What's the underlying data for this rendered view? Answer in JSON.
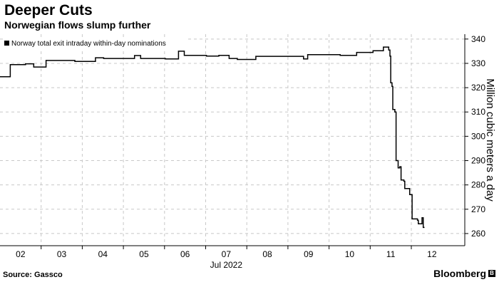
{
  "header": {
    "title": "Deeper Cuts",
    "subtitle": "Norwegian flows slump further"
  },
  "footer": {
    "source": "Source: Gassco",
    "brand": "Bloomberg"
  },
  "colors": {
    "line": "#000000",
    "grid": "#c8c8c8",
    "axis": "#000000",
    "background": "#ffffff"
  },
  "chart_data": {
    "type": "line",
    "title": "",
    "xlabel": "Jul 2022",
    "ylabel": "Million cubic meters a day",
    "ylim": [
      255,
      342
    ],
    "xlim": [
      1.5,
      12.8
    ],
    "x_ticks": [
      {
        "v": 2,
        "label": "02"
      },
      {
        "v": 3,
        "label": "03"
      },
      {
        "v": 4,
        "label": "04"
      },
      {
        "v": 5,
        "label": "05"
      },
      {
        "v": 6,
        "label": "06"
      },
      {
        "v": 7,
        "label": "07"
      },
      {
        "v": 8,
        "label": "08"
      },
      {
        "v": 9,
        "label": "09"
      },
      {
        "v": 10,
        "label": "10"
      },
      {
        "v": 11,
        "label": "11"
      },
      {
        "v": 12,
        "label": "12"
      }
    ],
    "x_month_label": {
      "v": 7,
      "label": "Jul 2022"
    },
    "y_ticks": [
      260,
      270,
      280,
      290,
      300,
      310,
      320,
      330,
      340
    ],
    "grid": true,
    "legend": {
      "position": "top-left",
      "label": "Norway total exit intraday within-day nominations"
    },
    "series": [
      {
        "name": "Norway total exit intraday within-day nominations",
        "step": true,
        "points": [
          [
            1.5,
            324.5
          ],
          [
            1.73,
            324.5
          ],
          [
            1.75,
            329.5
          ],
          [
            2.1,
            329.5
          ],
          [
            2.12,
            329.8
          ],
          [
            2.3,
            329.8
          ],
          [
            2.32,
            328.5
          ],
          [
            2.6,
            328.5
          ],
          [
            2.62,
            331.2
          ],
          [
            3.3,
            331.2
          ],
          [
            3.32,
            330.8
          ],
          [
            3.8,
            330.8
          ],
          [
            3.82,
            332.3
          ],
          [
            4.0,
            332.3
          ],
          [
            4.02,
            332.0
          ],
          [
            4.75,
            332.0
          ],
          [
            4.77,
            333.2
          ],
          [
            4.9,
            333.2
          ],
          [
            4.92,
            332.0
          ],
          [
            5.5,
            332.0
          ],
          [
            5.52,
            331.8
          ],
          [
            5.82,
            331.8
          ],
          [
            5.84,
            335.0
          ],
          [
            5.96,
            335.0
          ],
          [
            5.98,
            333.3
          ],
          [
            6.5,
            333.3
          ],
          [
            6.52,
            333.0
          ],
          [
            6.8,
            333.0
          ],
          [
            6.82,
            333.3
          ],
          [
            7.05,
            333.3
          ],
          [
            7.07,
            332.0
          ],
          [
            7.25,
            332.0
          ],
          [
            7.27,
            331.6
          ],
          [
            7.7,
            331.6
          ],
          [
            7.72,
            332.9
          ],
          [
            8.85,
            332.9
          ],
          [
            8.88,
            331.8
          ],
          [
            8.95,
            331.8
          ],
          [
            8.98,
            333.6
          ],
          [
            9.75,
            333.6
          ],
          [
            9.77,
            333.3
          ],
          [
            10.15,
            333.3
          ],
          [
            10.17,
            334.5
          ],
          [
            10.55,
            334.5
          ],
          [
            10.57,
            335.2
          ],
          [
            10.8,
            335.2
          ],
          [
            10.82,
            336.7
          ],
          [
            10.9,
            336.7
          ],
          [
            10.95,
            335.5
          ],
          [
            10.98,
            333.0
          ],
          [
            11.0,
            322.0
          ],
          [
            11.03,
            320.5
          ],
          [
            11.05,
            311.0
          ],
          [
            11.1,
            310.0
          ],
          [
            11.13,
            290.0
          ],
          [
            11.18,
            287.0
          ],
          [
            11.22,
            287.5
          ],
          [
            11.25,
            282.0
          ],
          [
            11.32,
            281.5
          ],
          [
            11.34,
            278.5
          ],
          [
            11.44,
            278.5
          ],
          [
            11.46,
            276.0
          ],
          [
            11.5,
            276.0
          ],
          [
            11.52,
            266.0
          ],
          [
            11.65,
            265.5
          ],
          [
            11.67,
            264.0
          ],
          [
            11.75,
            264.0
          ],
          [
            11.76,
            266.5
          ],
          [
            11.78,
            266.5
          ],
          [
            11.79,
            262.5
          ],
          [
            11.82,
            262.5
          ]
        ]
      }
    ]
  }
}
